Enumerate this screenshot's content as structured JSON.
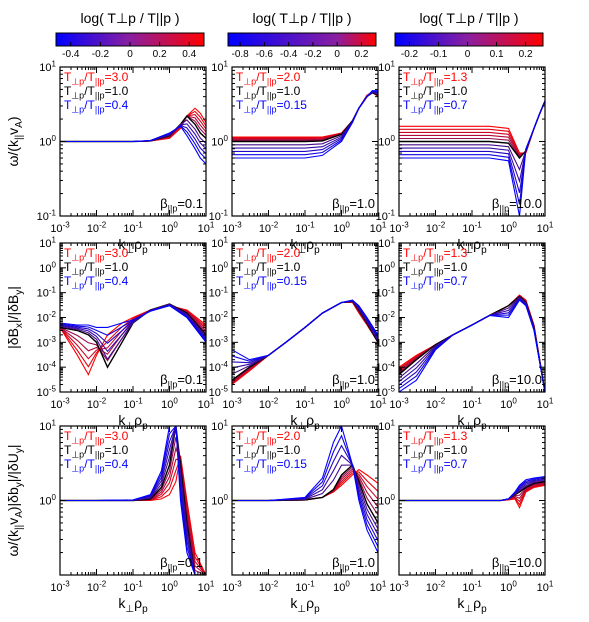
{
  "colorbars": [
    {
      "label": "log( T⊥p / T||p )",
      "ticks": [
        "-0.4",
        "-0.2",
        "0",
        "0.2",
        "0.4"
      ],
      "tick_values": [
        -0.4,
        -0.2,
        0,
        0.2,
        0.4
      ],
      "range": [
        -0.5,
        0.5
      ]
    },
    {
      "label": "log( T⊥p / T||p )",
      "ticks": [
        "-0.8",
        "-0.6",
        "-0.4",
        "-0.2",
        "0",
        "0.2"
      ],
      "tick_values": [
        -0.8,
        -0.6,
        -0.4,
        -0.2,
        0,
        0.2
      ],
      "range": [
        -0.9,
        0.32
      ]
    },
    {
      "label": "log( T⊥p / T||p )",
      "ticks": [
        "-0.2",
        "-0.1",
        "0",
        "0.1",
        "0.2"
      ],
      "tick_values": [
        -0.2,
        -0.1,
        0,
        0.1,
        0.2
      ],
      "range": [
        -0.25,
        0.26
      ]
    }
  ],
  "colors": {
    "high": "#ff0000",
    "mid": "#000000",
    "low": "#0000ff"
  },
  "row_ylabels": [
    "ω/(k||vA)",
    "|δBx|/|δBy|",
    "ω/(k||vA)|δby|/|δUy|"
  ],
  "xlabel": "k⊥ρp",
  "x_ticks": [
    "10-3",
    "10-2",
    "10-1",
    "100",
    "101"
  ],
  "beta_labels": [
    "β||p=0.1",
    "β||p=1.0",
    "β||p=10.0"
  ],
  "legends": [
    [
      "T⊥p/T||p=3.0",
      "T⊥p/T||p=1.0",
      "T⊥p/T||p=0.4"
    ],
    [
      "T⊥p/T||p=2.0",
      "T⊥p/T||p=1.0",
      "T⊥p/T||p=0.15"
    ],
    [
      "T⊥p/T||p=1.3",
      "T⊥p/T||p=1.0",
      "T⊥p/T||p=0.7"
    ]
  ],
  "y_ticks": [
    [
      "10-1",
      "100",
      "101"
    ],
    [
      "10-5",
      "10-4",
      "10-3",
      "10-2",
      "10-1",
      "100",
      "101"
    ],
    [
      "100",
      "101"
    ]
  ],
  "chart_data": [
    {
      "type": "line",
      "row": 0,
      "col": 0,
      "xlim": [
        0.001,
        10
      ],
      "ylim": [
        0.1,
        10
      ],
      "xscale": "log",
      "yscale": "log",
      "x": [
        0.001,
        0.01,
        0.1,
        0.3,
        1,
        2,
        3,
        5,
        7,
        10
      ],
      "series": [
        {
          "name": "T⊥p/T||p=3.0",
          "color": "#ff0000",
          "values": [
            1.0,
            1.0,
            1.0,
            1.02,
            1.1,
            1.5,
            2.2,
            2.8,
            2.4,
            1.8
          ]
        },
        {
          "name": "T⊥p/T||p=1.0",
          "color": "#000000",
          "values": [
            1.0,
            1.0,
            1.0,
            1.02,
            1.2,
            1.7,
            2.2,
            1.7,
            1.3,
            1.1
          ]
        },
        {
          "name": "T⊥p/T||p=0.4",
          "color": "#0000ff",
          "values": [
            1.0,
            1.0,
            1.0,
            1.03,
            1.3,
            1.6,
            1.2,
            0.8,
            0.6,
            0.5
          ]
        }
      ]
    },
    {
      "type": "line",
      "row": 0,
      "col": 1,
      "xlim": [
        0.001,
        10
      ],
      "ylim": [
        0.1,
        10
      ],
      "xscale": "log",
      "yscale": "log",
      "x": [
        0.001,
        0.01,
        0.1,
        0.3,
        1,
        2,
        3,
        5,
        7,
        10
      ],
      "series": [
        {
          "name": "T⊥p/T||p=2.0",
          "color": "#ff0000",
          "values": [
            1.15,
            1.15,
            1.15,
            1.15,
            1.3,
            1.9,
            2.8,
            4.2,
            4.6,
            4.0
          ]
        },
        {
          "name": "T⊥p/T||p=1.0",
          "color": "#000000",
          "values": [
            1.0,
            1.0,
            1.0,
            1.02,
            1.25,
            1.9,
            2.8,
            4.0,
            4.5,
            4.2
          ]
        },
        {
          "name": "T⊥p/T||p=0.15",
          "color": "#0000ff",
          "values": [
            0.6,
            0.6,
            0.6,
            0.65,
            1.0,
            1.8,
            2.8,
            4.0,
            4.8,
            4.8
          ]
        }
      ]
    },
    {
      "type": "line",
      "row": 0,
      "col": 2,
      "xlim": [
        0.001,
        10
      ],
      "ylim": [
        0.1,
        10
      ],
      "xscale": "log",
      "yscale": "log",
      "x": [
        0.001,
        0.01,
        0.1,
        0.3,
        1,
        2,
        3,
        5,
        7,
        10
      ],
      "series": [
        {
          "name": "T⊥p/T||p=1.3",
          "color": "#ff0000",
          "values": [
            1.6,
            1.6,
            1.6,
            1.6,
            1.5,
            0.7,
            0.7,
            1.5,
            2.3,
            3.5
          ]
        },
        {
          "name": "T⊥p/T||p=1.0",
          "color": "#000000",
          "values": [
            1.0,
            1.0,
            1.0,
            1.0,
            0.95,
            0.6,
            0.75,
            1.5,
            2.3,
            3.5
          ]
        },
        {
          "name": "T⊥p/T||p=0.7",
          "color": "#0000ff",
          "values": [
            0.6,
            0.6,
            0.6,
            0.6,
            0.55,
            0.1,
            0.8,
            1.5,
            2.3,
            3.5
          ]
        }
      ]
    },
    {
      "type": "line",
      "row": 1,
      "col": 0,
      "xlim": [
        0.001,
        10
      ],
      "ylim": [
        1e-05,
        10
      ],
      "xscale": "log",
      "yscale": "log",
      "x": [
        0.001,
        0.003,
        0.006,
        0.01,
        0.02,
        0.05,
        0.1,
        0.3,
        1,
        3,
        10
      ],
      "series": [
        {
          "name": "T⊥p/T||p=3.0",
          "color": "#ff0000",
          "values": [
            0.004,
            0.0003,
            5e-05,
            0.0003,
            0.002,
            0.006,
            0.01,
            0.02,
            0.03,
            0.02,
            0.005
          ]
        },
        {
          "name": "T⊥p/T||p=1.0",
          "color": "#000000",
          "values": [
            0.004,
            0.003,
            0.002,
            0.001,
            0.0001,
            0.001,
            0.006,
            0.02,
            0.035,
            0.015,
            0.002
          ]
        },
        {
          "name": "T⊥p/T||p=0.4",
          "color": "#0000ff",
          "values": [
            0.006,
            0.005,
            0.005,
            0.004,
            0.004,
            0.006,
            0.008,
            0.018,
            0.03,
            0.01,
            0.001
          ]
        }
      ]
    },
    {
      "type": "line",
      "row": 1,
      "col": 1,
      "xlim": [
        0.001,
        10
      ],
      "ylim": [
        1e-05,
        10
      ],
      "xscale": "log",
      "yscale": "log",
      "x": [
        0.001,
        0.003,
        0.01,
        0.03,
        0.1,
        0.3,
        1,
        2,
        3,
        5,
        10
      ],
      "series": [
        {
          "name": "T⊥p/T||p=2.0",
          "color": "#ff0000",
          "values": [
            2e-05,
            7e-05,
            0.0003,
            0.001,
            0.004,
            0.015,
            0.04,
            0.04,
            0.015,
            0.005,
            0.001
          ]
        },
        {
          "name": "T⊥p/T||p=1.0",
          "color": "#000000",
          "values": [
            3e-05,
            0.0001,
            0.0003,
            0.001,
            0.004,
            0.015,
            0.04,
            0.045,
            0.02,
            0.006,
            0.001
          ]
        },
        {
          "name": "T⊥p/T||p=0.15",
          "color": "#0000ff",
          "values": [
            0.0005,
            0.0002,
            0.0003,
            0.001,
            0.004,
            0.015,
            0.04,
            0.05,
            0.03,
            0.01,
            0.002
          ]
        }
      ]
    },
    {
      "type": "line",
      "row": 1,
      "col": 2,
      "xlim": [
        0.001,
        10
      ],
      "ylim": [
        1e-05,
        10
      ],
      "xscale": "log",
      "yscale": "log",
      "x": [
        0.001,
        0.003,
        0.01,
        0.03,
        0.1,
        0.3,
        1,
        2,
        3,
        5,
        10
      ],
      "series": [
        {
          "name": "T⊥p/T||p=1.3",
          "color": "#ff0000",
          "values": [
            0.0001,
            0.0003,
            0.0008,
            0.002,
            0.005,
            0.012,
            0.03,
            0.08,
            0.05,
            0.005,
            1e-05
          ]
        },
        {
          "name": "T⊥p/T||p=1.0",
          "color": "#000000",
          "values": [
            5e-05,
            0.0002,
            0.0008,
            0.002,
            0.005,
            0.012,
            0.03,
            0.07,
            0.04,
            0.004,
            1e-05
          ]
        },
        {
          "name": "T⊥p/T||p=0.7",
          "color": "#0000ff",
          "values": [
            1e-05,
            3e-05,
            0.0005,
            0.002,
            0.005,
            0.012,
            0.01,
            0.05,
            0.03,
            0.003,
            1e-05
          ]
        }
      ]
    },
    {
      "type": "line",
      "row": 2,
      "col": 0,
      "xlim": [
        0.001,
        10
      ],
      "ylim": [
        0.1,
        10
      ],
      "xscale": "log",
      "yscale": "log",
      "x": [
        0.001,
        0.01,
        0.1,
        0.3,
        0.6,
        1,
        1.5,
        2,
        3,
        5,
        10
      ],
      "series": [
        {
          "name": "T⊥p/T||p=3.0",
          "color": "#ff0000",
          "values": [
            1.0,
            1.0,
            1.0,
            1.0,
            1.05,
            1.2,
            1.8,
            4.0,
            1.0,
            0.2,
            0.1
          ]
        },
        {
          "name": "T⊥p/T||p=1.0",
          "color": "#000000",
          "values": [
            1.0,
            1.0,
            1.0,
            1.05,
            1.5,
            3.0,
            10.0,
            3.0,
            0.5,
            0.1,
            0.1
          ]
        },
        {
          "name": "T⊥p/T||p=0.4",
          "color": "#0000ff",
          "values": [
            1.0,
            1.0,
            1.02,
            1.2,
            2.5,
            10.0,
            10.0,
            1.0,
            0.2,
            0.1,
            0.1
          ]
        }
      ]
    },
    {
      "type": "line",
      "row": 2,
      "col": 1,
      "xlim": [
        0.001,
        10
      ],
      "ylim": [
        0.1,
        10
      ],
      "xscale": "log",
      "yscale": "log",
      "x": [
        0.001,
        0.01,
        0.1,
        0.3,
        0.6,
        1,
        2,
        3,
        5,
        10
      ],
      "series": [
        {
          "name": "T⊥p/T||p=2.0",
          "color": "#ff0000",
          "values": [
            1.0,
            1.0,
            1.02,
            1.1,
            1.3,
            1.6,
            2.2,
            2.6,
            2.2,
            1.7
          ]
        },
        {
          "name": "T⊥p/T||p=1.0",
          "color": "#000000",
          "values": [
            1.0,
            1.0,
            1.02,
            1.1,
            1.4,
            2.2,
            3.0,
            1.8,
            0.9,
            0.5
          ]
        },
        {
          "name": "T⊥p/T||p=0.15",
          "color": "#0000ff",
          "values": [
            1.0,
            1.0,
            1.1,
            2.0,
            6.0,
            10.0,
            3.0,
            1.0,
            0.4,
            0.2
          ]
        }
      ]
    },
    {
      "type": "line",
      "row": 2,
      "col": 2,
      "xlim": [
        0.001,
        10
      ],
      "ylim": [
        0.1,
        10
      ],
      "xscale": "log",
      "yscale": "log",
      "x": [
        0.001,
        0.01,
        0.1,
        0.3,
        0.6,
        1,
        1.5,
        2,
        3,
        5,
        10
      ],
      "series": [
        {
          "name": "T⊥p/T||p=1.3",
          "color": "#ff0000",
          "values": [
            1.0,
            1.0,
            1.0,
            1.0,
            1.0,
            1.02,
            1.05,
            0.8,
            1.3,
            1.5,
            1.6
          ]
        },
        {
          "name": "T⊥p/T||p=1.0",
          "color": "#000000",
          "values": [
            1.0,
            1.0,
            1.0,
            1.0,
            1.0,
            1.05,
            1.2,
            1.3,
            1.5,
            1.7,
            1.8
          ]
        },
        {
          "name": "T⊥p/T||p=0.7",
          "color": "#0000ff",
          "values": [
            1.0,
            1.0,
            1.0,
            1.0,
            1.0,
            1.05,
            1.3,
            1.6,
            1.9,
            2.0,
            2.1
          ]
        }
      ]
    }
  ]
}
